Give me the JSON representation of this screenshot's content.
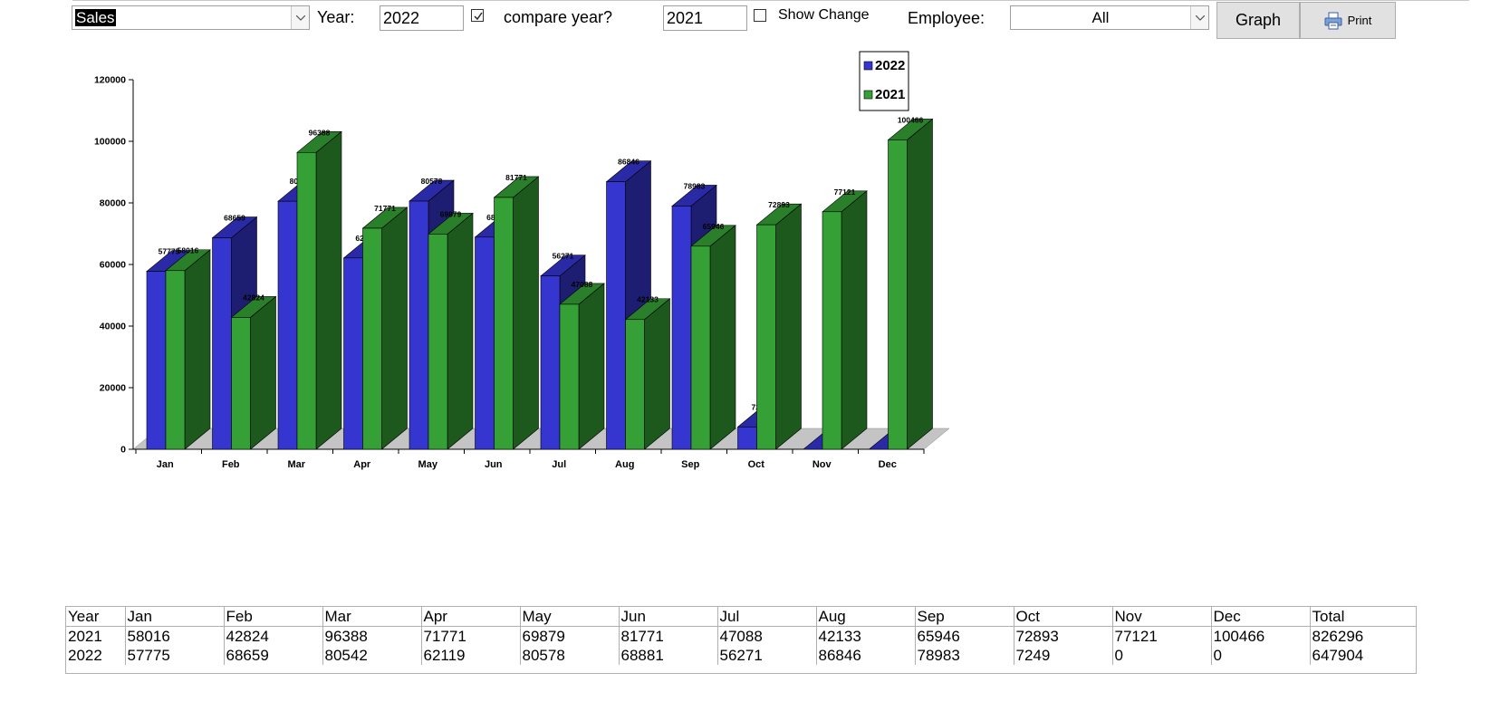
{
  "filters": {
    "metric": "Sales",
    "year_label": "Year:",
    "year_value": "2022",
    "compare_checked": true,
    "compare_label": "compare year?",
    "compare_year_value": "2021",
    "show_change_checked": false,
    "show_change_label": "Show Change",
    "employee_label": "Employee:",
    "employee_value": "All"
  },
  "buttons": {
    "graph_label": "Graph",
    "print_label": "Print"
  },
  "chart_data": {
    "type": "bar",
    "categories": [
      "Jan",
      "Feb",
      "Mar",
      "Apr",
      "May",
      "Jun",
      "Jul",
      "Aug",
      "Sep",
      "Oct",
      "Nov",
      "Dec"
    ],
    "series": [
      {
        "name": "2022",
        "color": "#3535cf",
        "values": [
          57775,
          68659,
          80542,
          62119,
          80578,
          68881,
          56271,
          86846,
          78983,
          7249,
          0,
          0
        ]
      },
      {
        "name": "2021",
        "color": "#35a035",
        "values": [
          58016,
          42824,
          96388,
          71771,
          69879,
          81771,
          47088,
          42133,
          65946,
          72893,
          77121,
          100466
        ]
      }
    ],
    "ylim": [
      0,
      120000
    ],
    "yticks": [
      0,
      20000,
      40000,
      60000,
      80000,
      100000,
      120000
    ],
    "ytick_labels": [
      "0",
      "20000",
      "40000",
      "60000",
      "80000",
      "100000",
      "120000"
    ],
    "legend": "top-right",
    "style": "3d"
  },
  "table": {
    "headers": [
      "Year",
      "Jan",
      "Feb",
      "Mar",
      "Apr",
      "May",
      "Jun",
      "Jul",
      "Aug",
      "Sep",
      "Oct",
      "Nov",
      "Dec",
      "Total"
    ],
    "rows": [
      [
        "2021",
        "58016",
        "42824",
        "96388",
        "71771",
        "69879",
        "81771",
        "47088",
        "42133",
        "65946",
        "72893",
        "77121",
        "100466",
        "826296"
      ],
      [
        "2022",
        "57775",
        "68659",
        "80542",
        "62119",
        "80578",
        "68881",
        "56271",
        "86846",
        "78983",
        "7249",
        "0",
        "0",
        "647904"
      ]
    ]
  }
}
